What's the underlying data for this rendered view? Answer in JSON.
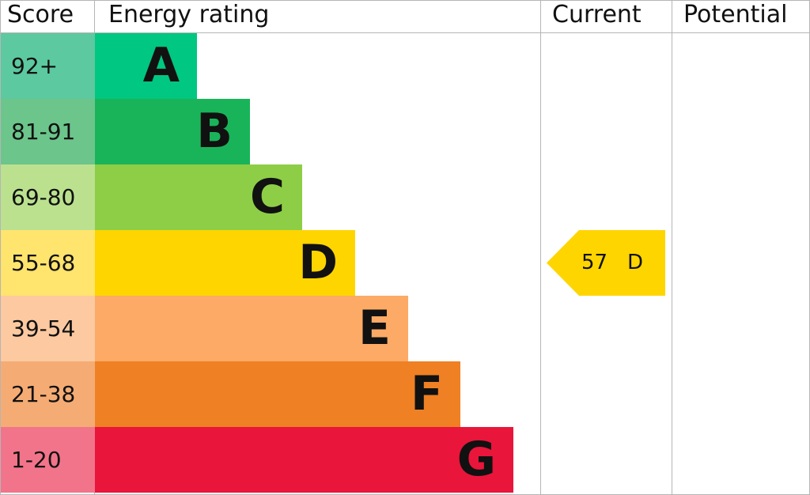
{
  "header": {
    "score": "Score",
    "energy_rating": "Energy rating",
    "current": "Current",
    "potential": "Potential"
  },
  "chart_data": {
    "type": "bar",
    "bands": [
      {
        "letter": "A",
        "range": "92+",
        "color": "#00c781",
        "score_color": "#5cc9a0"
      },
      {
        "letter": "B",
        "range": "81-91",
        "color": "#19b459",
        "score_color": "#6cc58b"
      },
      {
        "letter": "C",
        "range": "69-80",
        "color": "#8dce46",
        "score_color": "#bbe18f"
      },
      {
        "letter": "D",
        "range": "55-68",
        "color": "#ffd500",
        "score_color": "#ffe46d"
      },
      {
        "letter": "E",
        "range": "39-54",
        "color": "#fcaa65",
        "score_color": "#fdc9a0"
      },
      {
        "letter": "F",
        "range": "21-38",
        "color": "#ef8023",
        "score_color": "#f4ac74"
      },
      {
        "letter": "G",
        "range": "1-20",
        "color": "#e9153b",
        "score_color": "#f2748a"
      }
    ],
    "current": {
      "score": "57",
      "letter": "D",
      "color": "#ffd500"
    },
    "potential": null
  }
}
